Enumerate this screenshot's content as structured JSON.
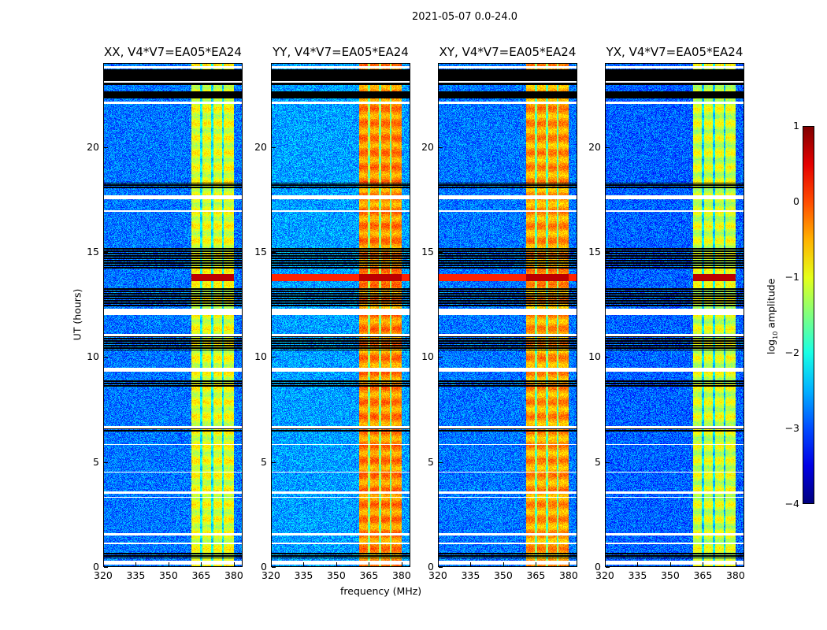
{
  "chart_data": {
    "type": "heatmap",
    "title": "2021-05-07 0.0-24.0",
    "xlabel": "frequency (MHz)",
    "ylabel": "UT (hours)",
    "xlim": [
      320,
      384
    ],
    "ylim": [
      0,
      24
    ],
    "xticks": [
      320,
      335,
      350,
      365,
      380
    ],
    "yticks": [
      0,
      5,
      10,
      15,
      20
    ],
    "colorbar": {
      "label_prefix": "log",
      "label_sub": "10",
      "label_suffix": " amplitude",
      "range": [
        -4,
        1
      ],
      "ticks": [
        1,
        0,
        -1,
        -2,
        -3,
        -4
      ],
      "tick_labels": [
        "1",
        "0",
        "−1",
        "−2",
        "−3",
        "−4"
      ],
      "colormap": "jet"
    },
    "panels": [
      {
        "title": "XX, V4*V7=EA05*EA24",
        "background_level": -2.8,
        "band_level": -1.0,
        "rfi_row_full": false
      },
      {
        "title": "YY, V4*V7=EA05*EA24",
        "background_level": -2.6,
        "band_level": -0.3,
        "rfi_row_full": true
      },
      {
        "title": "XY, V4*V7=EA05*EA24",
        "background_level": -2.8,
        "band_level": -0.4,
        "rfi_row_full": true
      },
      {
        "title": "YX, V4*V7=EA05*EA24",
        "background_level": -2.9,
        "band_level": -1.1,
        "rfi_row_full": false
      }
    ],
    "rfi_band_MHz": [
      360.5,
      380
    ],
    "rfi_gaps_MHz": [
      365,
      370,
      375
    ],
    "rfi_time_row_UT": [
      13.6,
      13.95
    ],
    "no_data_UT": [
      [
        22.95,
        23.7
      ],
      [
        22.3,
        22.65
      ],
      [
        18.0,
        18.3
      ],
      [
        14.2,
        15.2
      ],
      [
        10.3,
        11.0
      ],
      [
        8.6,
        8.9
      ],
      [
        12.4,
        13.3
      ],
      [
        6.4,
        6.6
      ],
      [
        0.4,
        0.7
      ]
    ],
    "flagged_UT": [
      [
        23.75,
        23.85
      ],
      [
        23.05,
        23.15
      ],
      [
        22.05,
        22.15
      ],
      [
        17.5,
        17.7
      ],
      [
        16.9,
        17.0
      ],
      [
        12.0,
        12.3
      ],
      [
        11.0,
        11.1
      ],
      [
        9.3,
        9.5
      ],
      [
        6.6,
        6.7
      ],
      [
        5.8,
        5.85
      ],
      [
        4.5,
        4.55
      ],
      [
        3.5,
        3.6
      ],
      [
        3.3,
        3.35
      ],
      [
        1.5,
        1.6
      ],
      [
        1.1,
        1.15
      ],
      [
        0.1,
        0.3
      ]
    ]
  }
}
